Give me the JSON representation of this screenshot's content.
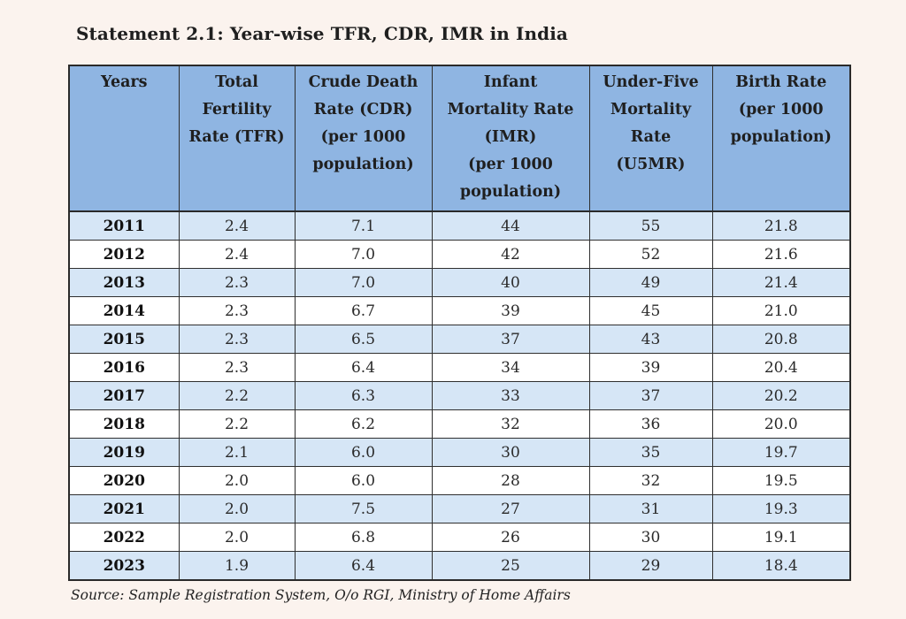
{
  "title": "Statement 2.1: Year-wise TFR, CDR, IMR in India",
  "table": {
    "headers": [
      "Years",
      "Total\nFertility\nRate (TFR)",
      "Crude Death\nRate (CDR)\n(per 1000\npopulation)",
      "Infant\nMortality Rate\n(IMR)\n(per 1000\npopulation)",
      "Under-Five\nMortality\nRate\n(U5MR)",
      "Birth Rate\n(per 1000\npopulation)"
    ],
    "rows": [
      [
        "2011",
        "2.4",
        "7.1",
        "44",
        "55",
        "21.8"
      ],
      [
        "2012",
        "2.4",
        "7.0",
        "42",
        "52",
        "21.6"
      ],
      [
        "2013",
        "2.3",
        "7.0",
        "40",
        "49",
        "21.4"
      ],
      [
        "2014",
        "2.3",
        "6.7",
        "39",
        "45",
        "21.0"
      ],
      [
        "2015",
        "2.3",
        "6.5",
        "37",
        "43",
        "20.8"
      ],
      [
        "2016",
        "2.3",
        "6.4",
        "34",
        "39",
        "20.4"
      ],
      [
        "2017",
        "2.2",
        "6.3",
        "33",
        "37",
        "20.2"
      ],
      [
        "2018",
        "2.2",
        "6.2",
        "32",
        "36",
        "20.0"
      ],
      [
        "2019",
        "2.1",
        "6.0",
        "30",
        "35",
        "19.7"
      ],
      [
        "2020",
        "2.0",
        "6.0",
        "28",
        "32",
        "19.5"
      ],
      [
        "2021",
        "2.0",
        "7.5",
        "27",
        "31",
        "19.3"
      ],
      [
        "2022",
        "2.0",
        "6.8",
        "26",
        "30",
        "19.1"
      ],
      [
        "2023",
        "1.9",
        "6.4",
        "25",
        "29",
        "18.4"
      ]
    ]
  },
  "source": "Source: Sample Registration System, O/o RGI, Ministry of Home Affairs",
  "colors": {
    "header_bg": "#8fb5e2",
    "row_alt_bg": "#d6e6f6",
    "row_bg": "#ffffff",
    "page_bg": "#fbf3ee"
  }
}
